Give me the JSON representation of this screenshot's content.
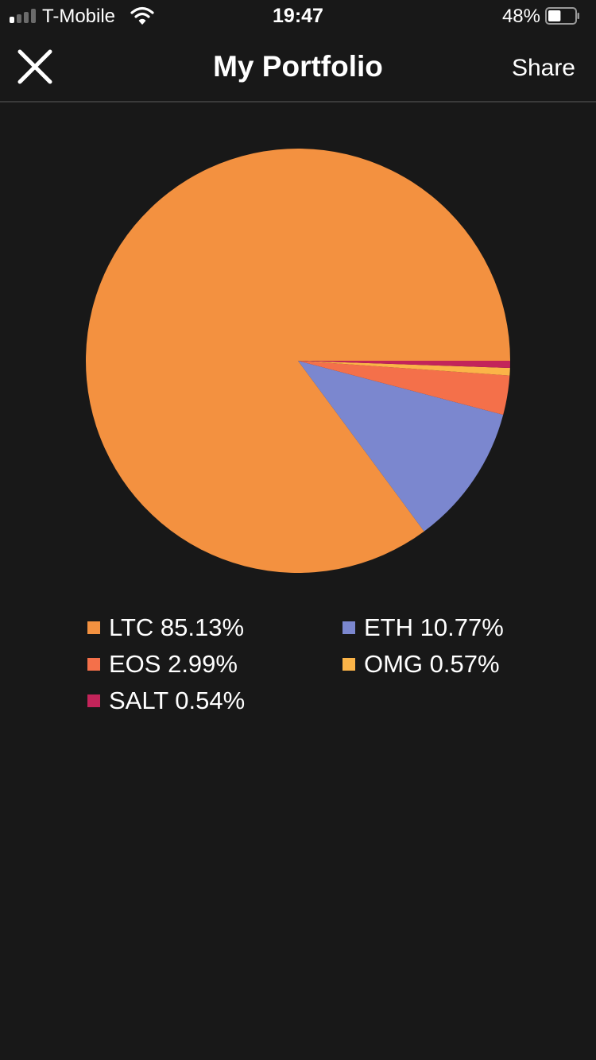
{
  "status_bar": {
    "carrier": "T-Mobile",
    "time": "19:47",
    "battery_percent": "48%",
    "battery_level": 0.48,
    "signal_bars_active": 1,
    "signal_bars_total": 4
  },
  "nav": {
    "title": "My Portfolio",
    "share_label": "Share",
    "close_icon": "close-icon"
  },
  "chart_data": {
    "type": "pie",
    "categories": [
      "LTC",
      "ETH",
      "EOS",
      "OMG",
      "SALT"
    ],
    "values": [
      85.13,
      10.77,
      2.99,
      0.57,
      0.54
    ],
    "colors": [
      "#f39140",
      "#7b87cf",
      "#f4704a",
      "#fbb448",
      "#c3245a"
    ],
    "legend": [
      {
        "label": "LTC 85.13%",
        "color": "#f39140"
      },
      {
        "label": "ETH 10.77%",
        "color": "#7b87cf"
      },
      {
        "label": "EOS 2.99%",
        "color": "#f4704a"
      },
      {
        "label": "OMG 0.57%",
        "color": "#fbb448"
      },
      {
        "label": "SALT 0.54%",
        "color": "#c3245a"
      }
    ],
    "legend_placement": "bottom"
  }
}
